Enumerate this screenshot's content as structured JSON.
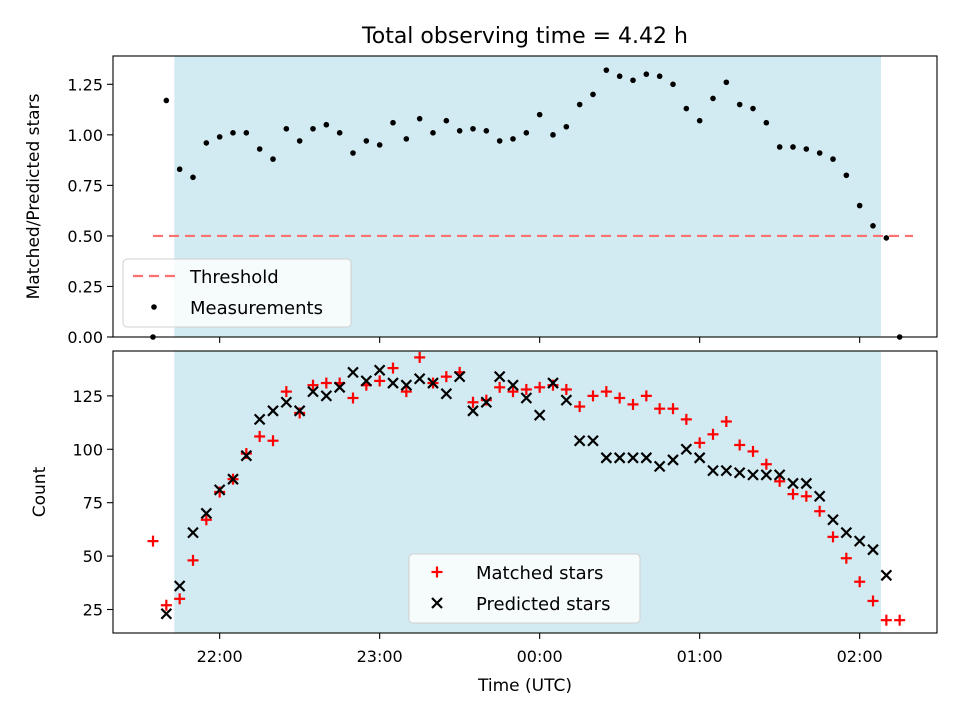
{
  "chart_data": [
    {
      "type": "scatter",
      "title": "Total observing time = 4.42 h",
      "ylabel": "Matched/Predicted stars",
      "xlabel": "",
      "xlim": [
        "21:20",
        "02:29"
      ],
      "ylim": [
        0,
        1.39
      ],
      "yticks": [
        "0.00",
        "0.25",
        "0.50",
        "0.75",
        "1.00",
        "1.25"
      ],
      "xticks": [
        "22:00",
        "23:00",
        "00:00",
        "01:00",
        "02:00"
      ],
      "observing_window": [
        "21:43",
        "02:08"
      ],
      "threshold": {
        "name": "Threshold",
        "y": 0.5,
        "x": [
          "21:35",
          "02:20"
        ],
        "color": "#ff7070"
      },
      "legend": {
        "position": "lower left",
        "entries": [
          "Threshold",
          "Measurements"
        ]
      },
      "series": [
        {
          "name": "Measurements",
          "color": "#000000",
          "x": [
            "21:35",
            "21:40",
            "21:45",
            "21:50",
            "21:55",
            "22:00",
            "22:05",
            "22:10",
            "22:15",
            "22:20",
            "22:25",
            "22:30",
            "22:35",
            "22:40",
            "22:45",
            "22:50",
            "22:55",
            "23:00",
            "23:05",
            "23:10",
            "23:15",
            "23:20",
            "23:25",
            "23:30",
            "23:35",
            "23:40",
            "23:45",
            "23:50",
            "23:55",
            "00:00",
            "00:05",
            "00:10",
            "00:15",
            "00:20",
            "00:25",
            "00:30",
            "00:35",
            "00:40",
            "00:45",
            "00:50",
            "00:55",
            "01:00",
            "01:05",
            "01:10",
            "01:15",
            "01:20",
            "01:25",
            "01:30",
            "01:35",
            "01:40",
            "01:45",
            "01:50",
            "01:55",
            "02:00",
            "02:05",
            "02:10",
            "02:15"
          ],
          "y": [
            0.0,
            1.17,
            0.83,
            0.79,
            0.96,
            0.99,
            1.01,
            1.01,
            0.93,
            0.88,
            1.03,
            0.97,
            1.03,
            1.05,
            1.01,
            0.91,
            0.97,
            0.95,
            1.06,
            0.98,
            1.08,
            1.01,
            1.07,
            1.02,
            1.03,
            1.02,
            0.97,
            0.98,
            1.01,
            1.1,
            1.0,
            1.04,
            1.15,
            1.2,
            1.32,
            1.29,
            1.27,
            1.3,
            1.29,
            1.25,
            1.13,
            1.07,
            1.18,
            1.26,
            1.15,
            1.13,
            1.06,
            0.94,
            0.94,
            0.93,
            0.91,
            0.88,
            0.8,
            0.65,
            0.55,
            0.49,
            0.0
          ]
        }
      ]
    },
    {
      "type": "scatter",
      "title": "",
      "ylabel": "Count",
      "xlabel": "Time (UTC)",
      "xlim": [
        "21:20",
        "02:29"
      ],
      "ylim": [
        14,
        146
      ],
      "yticks": [
        "25",
        "50",
        "75",
        "100",
        "125"
      ],
      "xticks": [
        "22:00",
        "23:00",
        "00:00",
        "01:00",
        "02:00"
      ],
      "observing_window": [
        "21:43",
        "02:08"
      ],
      "legend": {
        "position": "lower center",
        "entries": [
          "Matched stars",
          "Predicted stars"
        ]
      },
      "series": [
        {
          "name": "Matched stars",
          "marker": "+",
          "color": "#ff0000",
          "x": [
            "21:35",
            "21:40",
            "21:45",
            "21:50",
            "21:55",
            "22:00",
            "22:05",
            "22:10",
            "22:15",
            "22:20",
            "22:25",
            "22:30",
            "22:35",
            "22:40",
            "22:45",
            "22:50",
            "22:55",
            "23:00",
            "23:05",
            "23:10",
            "23:15",
            "23:20",
            "23:25",
            "23:30",
            "23:35",
            "23:40",
            "23:45",
            "23:50",
            "23:55",
            "00:00",
            "00:05",
            "00:10",
            "00:15",
            "00:20",
            "00:25",
            "00:30",
            "00:35",
            "00:40",
            "00:45",
            "00:50",
            "00:55",
            "01:00",
            "01:05",
            "01:10",
            "01:15",
            "01:20",
            "01:25",
            "01:30",
            "01:35",
            "01:40",
            "01:45",
            "01:50",
            "01:55",
            "02:00",
            "02:05",
            "02:10",
            "02:15"
          ],
          "y": [
            57,
            27,
            30,
            48,
            67,
            80,
            86,
            98,
            106,
            104,
            127,
            117,
            130,
            131,
            131,
            124,
            130,
            132,
            138,
            127,
            143,
            131,
            134,
            136,
            122,
            123,
            129,
            127,
            128,
            129,
            130,
            128,
            120,
            125,
            127,
            124,
            121,
            125,
            119,
            119,
            114,
            103,
            107,
            113,
            102,
            99,
            93,
            85,
            79,
            78,
            71,
            59,
            49,
            38,
            29,
            20,
            20
          ]
        },
        {
          "name": "Predicted stars",
          "marker": "x",
          "color": "#000000",
          "x": [
            "21:40",
            "21:45",
            "21:50",
            "21:55",
            "22:00",
            "22:05",
            "22:10",
            "22:15",
            "22:20",
            "22:25",
            "22:30",
            "22:35",
            "22:40",
            "22:45",
            "22:50",
            "22:55",
            "23:00",
            "23:05",
            "23:10",
            "23:15",
            "23:20",
            "23:25",
            "23:30",
            "23:35",
            "23:40",
            "23:45",
            "23:50",
            "23:55",
            "00:00",
            "00:05",
            "00:10",
            "00:15",
            "00:20",
            "00:25",
            "00:30",
            "00:35",
            "00:40",
            "00:45",
            "00:50",
            "00:55",
            "01:00",
            "01:05",
            "01:10",
            "01:15",
            "01:20",
            "01:25",
            "01:30",
            "01:35",
            "01:40",
            "01:45",
            "01:50",
            "01:55",
            "02:00",
            "02:05",
            "02:10"
          ],
          "y": [
            23,
            36,
            61,
            70,
            81,
            86,
            97,
            114,
            118,
            122,
            118,
            127,
            125,
            129,
            136,
            132,
            137,
            131,
            130,
            133,
            131,
            126,
            134,
            118,
            122,
            134,
            130,
            124,
            116,
            131,
            123,
            104,
            104,
            96,
            96,
            96,
            96,
            92,
            95,
            100,
            96,
            90,
            90,
            89,
            88,
            88,
            88,
            84,
            84,
            78,
            67,
            61,
            57,
            53,
            41
          ]
        }
      ]
    }
  ]
}
